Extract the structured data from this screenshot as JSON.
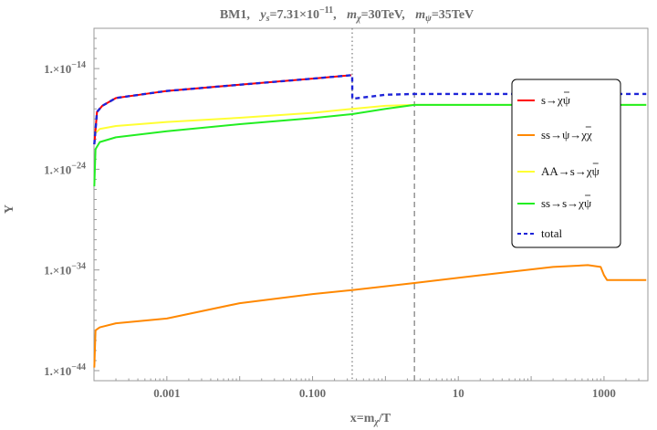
{
  "chart_data": {
    "type": "line",
    "title": "BM1,  y_s=7.31×10^{-11},  m_χ=30TeV,  m_ψ=35TeV",
    "title_parts": {
      "t1": "BM1,",
      "ys": "y",
      "ys_sub": "s",
      "ys_val": "=7.31×10",
      "ys_exp": "−11",
      "mchi": "m",
      "mchi_sub": "χ",
      "mchi_val": "=30TeV,",
      "mpsi": "m",
      "mpsi_sub": "ψ",
      "mpsi_val": "=35TeV"
    },
    "xlabel": "x=m_χ/T",
    "xlabel_parts": {
      "a": "x=m",
      "sub": "χ",
      "b": "/T"
    },
    "ylabel": "Y",
    "x_scale": "log",
    "y_scale": "log",
    "xlim": [
      0.0001,
      4000
    ],
    "ylim": [
      1e-45,
      1e-10
    ],
    "x_ticks": [
      {
        "value": 0.001,
        "label": "0.001"
      },
      {
        "value": 0.1,
        "label": "0.100"
      },
      {
        "value": 10,
        "label": "10"
      },
      {
        "value": 1000,
        "label": "1000"
      }
    ],
    "y_ticks": [
      {
        "value": 1e-14,
        "mant": "1.×10",
        "exp": "−14"
      },
      {
        "value": 1e-24,
        "mant": "1.×10",
        "exp": "−24"
      },
      {
        "value": 1e-34,
        "mant": "1.×10",
        "exp": "−34"
      },
      {
        "value": 1e-44,
        "mant": "1.×10",
        "exp": "−44"
      }
    ],
    "vlines": [
      {
        "x": 0.35,
        "style": "dotted"
      },
      {
        "x": 2.5,
        "style": "dashed"
      }
    ],
    "legend_position": "right",
    "series": [
      {
        "name": "s→χψ̄",
        "legend": {
          "a": "s→χ",
          "bar": "ψ"
        },
        "color": "#ff0000",
        "style": "solid",
        "points": [
          [
            0.000101,
            3e-22
          ],
          [
            0.00011,
            5e-19
          ],
          [
            0.00013,
            2e-18
          ],
          [
            0.0002,
            1.2e-17
          ],
          [
            0.0005,
            3e-17
          ],
          [
            0.001,
            6e-17
          ],
          [
            0.01,
            2.5e-16
          ],
          [
            0.1,
            1e-15
          ],
          [
            0.34,
            2.2e-15
          ]
        ]
      },
      {
        "name": "ss→ψ→χχ̄",
        "legend": {
          "a": "ss→ψ→χ",
          "bar": "χ"
        },
        "color": "#ff8800",
        "style": "solid",
        "points": [
          [
            0.000101,
            2e-44
          ],
          [
            0.000105,
            1e-40
          ],
          [
            0.00012,
            2e-40
          ],
          [
            0.0002,
            5e-40
          ],
          [
            0.001,
            1.5e-39
          ],
          [
            0.01,
            5e-38
          ],
          [
            0.1,
            4e-37
          ],
          [
            0.35,
            1e-36
          ],
          [
            2.5,
            5e-36
          ],
          [
            20,
            3e-35
          ],
          [
            200,
            2e-34
          ],
          [
            600,
            3e-34
          ],
          [
            900,
            2e-34
          ],
          [
            1000,
            3e-35
          ],
          [
            1100,
            1e-35
          ],
          [
            3800,
            1e-35
          ]
        ]
      },
      {
        "name": "AA→s→χψ̄",
        "legend": {
          "a": "AA→s→χ",
          "bar": "ψ"
        },
        "color": "#ffff33",
        "style": "solid",
        "points": [
          [
            0.000101,
            3e-21
          ],
          [
            0.00012,
            1e-20
          ],
          [
            0.0002,
            2e-20
          ],
          [
            0.001,
            5e-20
          ],
          [
            0.01,
            1.3e-19
          ],
          [
            0.1,
            4e-19
          ],
          [
            0.35,
            1e-18
          ],
          [
            1,
            2e-18
          ],
          [
            2.5,
            2.5e-18
          ],
          [
            3800,
            2.5e-18
          ]
        ]
      },
      {
        "name": "ss→s→χψ̄",
        "legend": {
          "a": "ss→s→χ",
          "bar": "ψ"
        },
        "color": "#22ee22",
        "style": "solid",
        "points": [
          [
            0.000101,
            2e-26
          ],
          [
            0.000105,
            1e-22
          ],
          [
            0.00012,
            5e-22
          ],
          [
            0.0002,
            1.5e-21
          ],
          [
            0.001,
            6e-21
          ],
          [
            0.01,
            3e-20
          ],
          [
            0.1,
            1.2e-19
          ],
          [
            0.35,
            3e-19
          ],
          [
            1,
            1e-18
          ],
          [
            2.5,
            2.5e-18
          ],
          [
            3800,
            2.5e-18
          ]
        ]
      },
      {
        "name": "total",
        "legend": {
          "a": "total",
          "bar": ""
        },
        "color": "#1e24d8",
        "style": "dashed",
        "points": [
          [
            0.000101,
            3e-22
          ],
          [
            0.00011,
            5e-19
          ],
          [
            0.00013,
            2e-18
          ],
          [
            0.0002,
            1.2e-17
          ],
          [
            0.0005,
            3e-17
          ],
          [
            0.001,
            6e-17
          ],
          [
            0.01,
            2.5e-16
          ],
          [
            0.1,
            1e-15
          ],
          [
            0.34,
            2.2e-15
          ],
          [
            0.35,
            2.2e-15
          ],
          [
            0.351,
            1e-17
          ],
          [
            1,
            2.5e-17
          ],
          [
            2.5,
            3e-17
          ],
          [
            3800,
            3e-17
          ]
        ]
      }
    ]
  }
}
